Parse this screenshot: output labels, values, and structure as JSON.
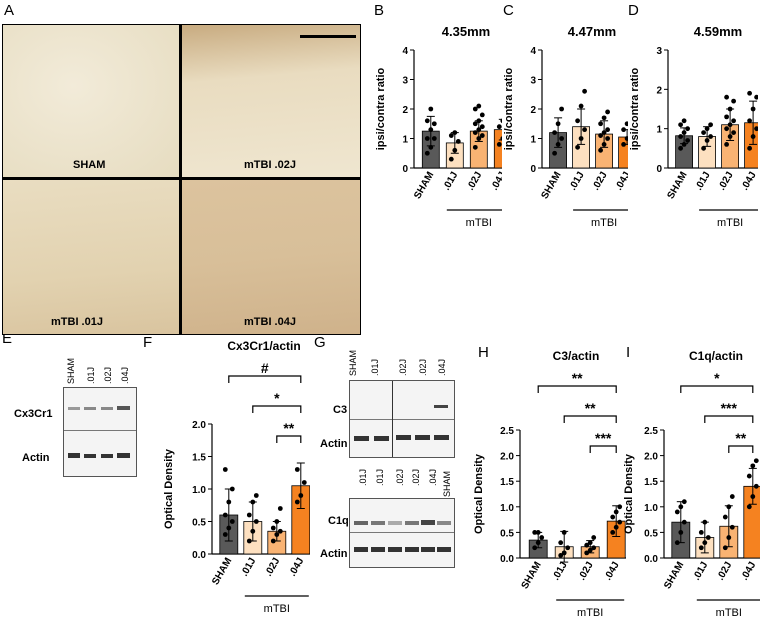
{
  "panel_letters": {
    "A": "A",
    "B": "B",
    "C": "C",
    "D": "D",
    "E": "E",
    "F": "F",
    "G": "G",
    "H": "H",
    "I": "I"
  },
  "micrographs": {
    "sham": "SHAM",
    "t02": "mTBI .02J",
    "t01": "mTBI .01J",
    "t04": "mTBI .04J"
  },
  "blot_e": {
    "lanes": [
      "SHAM",
      ".01J",
      ".02J",
      ".04J"
    ],
    "rows": [
      "Cx3Cr1",
      "Actin"
    ]
  },
  "blot_g": {
    "lanes_top": [
      "SHAM",
      ".01J",
      ".02J",
      ".02J",
      ".04J"
    ],
    "rows_top": [
      "C3",
      "Actin"
    ],
    "lanes_bottom": [
      ".01J",
      ".01J",
      ".02J",
      ".02J",
      ".04J",
      "SHAM"
    ],
    "rows_bottom": [
      "C1q",
      "Actin"
    ]
  },
  "colors": {
    "sham": "#595959",
    "t01": "#fde0c0",
    "t02": "#f9b373",
    "t04": "#f58220"
  },
  "chart_data": [
    {
      "id": "B",
      "type": "bar",
      "title": "4.35mm",
      "ylabel": "ipsi/contra ratio",
      "categories": [
        "SHAM",
        ".01J",
        ".02J",
        ".04J"
      ],
      "group_label": "mTBI",
      "values": [
        1.25,
        0.85,
        1.25,
        1.3
      ],
      "errors": [
        0.5,
        0.35,
        0.35,
        0.35
      ],
      "ylim": [
        0,
        4
      ],
      "yticks": [
        0,
        1,
        2,
        3,
        4
      ],
      "points": [
        [
          0.5,
          0.7,
          1.0,
          1.0,
          1.3,
          1.5,
          1.6,
          2.0
        ],
        [
          0.3,
          0.6,
          0.9,
          1.1,
          1.2
        ],
        [
          0.7,
          1.0,
          1.1,
          1.2,
          1.3,
          1.4,
          1.5,
          1.6,
          1.8,
          2.0,
          2.1
        ],
        [
          0.8,
          1.0,
          1.2,
          1.4,
          1.6,
          2.0
        ]
      ],
      "sig": []
    },
    {
      "id": "C",
      "type": "bar",
      "title": "4.47mm",
      "ylabel": "ipsi/contra ratio",
      "categories": [
        "SHAM",
        ".01J",
        ".02J",
        ".04J"
      ],
      "group_label": "mTBI",
      "values": [
        1.2,
        1.4,
        1.15,
        1.05
      ],
      "errors": [
        0.5,
        0.6,
        0.45,
        0.25
      ],
      "ylim": [
        0,
        4
      ],
      "yticks": [
        0,
        1,
        2,
        3,
        4
      ],
      "points": [
        [
          0.5,
          0.8,
          1.0,
          1.2,
          1.5,
          2.0
        ],
        [
          0.7,
          1.0,
          1.3,
          1.6,
          2.1,
          2.6
        ],
        [
          0.6,
          0.8,
          1.0,
          1.1,
          1.2,
          1.3,
          1.5,
          1.7,
          1.9
        ],
        [
          0.8,
          1.0,
          1.1,
          1.3,
          1.5
        ]
      ],
      "sig": []
    },
    {
      "id": "D",
      "type": "bar",
      "title": "4.59mm",
      "ylabel": "ipsi/contra ratio",
      "categories": [
        "SHAM",
        ".01J",
        ".02J",
        ".04J"
      ],
      "group_label": "mTBI",
      "values": [
        0.82,
        0.8,
        1.1,
        1.15
      ],
      "errors": [
        0.2,
        0.25,
        0.4,
        0.55
      ],
      "ylim": [
        0,
        3
      ],
      "yticks": [
        0,
        1,
        2,
        3
      ],
      "points": [
        [
          0.5,
          0.6,
          0.7,
          0.8,
          0.9,
          1.0,
          1.1,
          1.2
        ],
        [
          0.5,
          0.7,
          0.8,
          0.9,
          1.0,
          1.1
        ],
        [
          0.6,
          0.8,
          0.9,
          1.0,
          1.1,
          1.2,
          1.3,
          1.5,
          1.7,
          1.8
        ],
        [
          0.5,
          0.8,
          1.0,
          1.2,
          1.5,
          1.8,
          1.9
        ]
      ],
      "sig": []
    },
    {
      "id": "F",
      "type": "bar",
      "title": "Cx3Cr1/actin",
      "ylabel": "Optical Density",
      "categories": [
        "SHAM",
        ".01J",
        ".02J",
        ".04J"
      ],
      "group_label": "mTBI",
      "values": [
        0.6,
        0.5,
        0.35,
        1.05
      ],
      "errors": [
        0.4,
        0.3,
        0.15,
        0.35
      ],
      "ylim": [
        0,
        2.0
      ],
      "yticks": [
        0,
        0.5,
        1.0,
        1.5,
        2.0
      ],
      "points": [
        [
          0.3,
          0.4,
          0.5,
          0.6,
          0.8,
          1.0,
          1.3
        ],
        [
          0.2,
          0.35,
          0.5,
          0.6,
          0.8,
          0.9
        ],
        [
          0.2,
          0.3,
          0.35,
          0.4,
          0.5,
          0.7
        ],
        [
          0.8,
          0.9,
          1.1,
          1.3
        ]
      ],
      "sig": [
        {
          "from": 0,
          "to": 3,
          "label": "#"
        },
        {
          "from": 1,
          "to": 3,
          "label": "*"
        },
        {
          "from": 2,
          "to": 3,
          "label": "**"
        }
      ]
    },
    {
      "id": "H",
      "type": "bar",
      "title": "C3/actin",
      "ylabel": "Optical Density",
      "categories": [
        "SHAM",
        ".01J",
        ".02J",
        ".04J"
      ],
      "group_label": "mTBI",
      "values": [
        0.35,
        0.22,
        0.22,
        0.72
      ],
      "errors": [
        0.15,
        0.3,
        0.12,
        0.3
      ],
      "ylim": [
        0,
        2.5
      ],
      "yticks": [
        0,
        0.5,
        1.0,
        1.5,
        2.0,
        2.5
      ],
      "points": [
        [
          0.2,
          0.3,
          0.4,
          0.5,
          0.5
        ],
        [
          0.05,
          0.1,
          0.2,
          0.3,
          0.5
        ],
        [
          0.1,
          0.15,
          0.2,
          0.25,
          0.3,
          0.4
        ],
        [
          0.5,
          0.6,
          0.7,
          0.8,
          0.9,
          1.0
        ]
      ],
      "sig": [
        {
          "from": 0,
          "to": 3,
          "label": "**"
        },
        {
          "from": 1,
          "to": 3,
          "label": "**"
        },
        {
          "from": 2,
          "to": 3,
          "label": "***"
        }
      ]
    },
    {
      "id": "I",
      "type": "bar",
      "title": "C1q/actin",
      "ylabel": "Optical Density",
      "categories": [
        "SHAM",
        ".01J",
        ".02J",
        ".04J"
      ],
      "group_label": "mTBI",
      "values": [
        0.7,
        0.4,
        0.62,
        1.4
      ],
      "errors": [
        0.4,
        0.3,
        0.4,
        0.35
      ],
      "ylim": [
        0,
        2.5
      ],
      "yticks": [
        0,
        0.5,
        1.0,
        1.5,
        2.0,
        2.5
      ],
      "points": [
        [
          0.3,
          0.5,
          0.7,
          0.9,
          1.0,
          1.1
        ],
        [
          0.2,
          0.3,
          0.4,
          0.5,
          0.7
        ],
        [
          0.2,
          0.4,
          0.6,
          0.8,
          1.0,
          1.2
        ],
        [
          1.0,
          1.2,
          1.4,
          1.6,
          1.8,
          1.9
        ]
      ],
      "sig": [
        {
          "from": 0,
          "to": 3,
          "label": "*"
        },
        {
          "from": 1,
          "to": 3,
          "label": "***"
        },
        {
          "from": 2,
          "to": 3,
          "label": "**"
        }
      ]
    }
  ]
}
